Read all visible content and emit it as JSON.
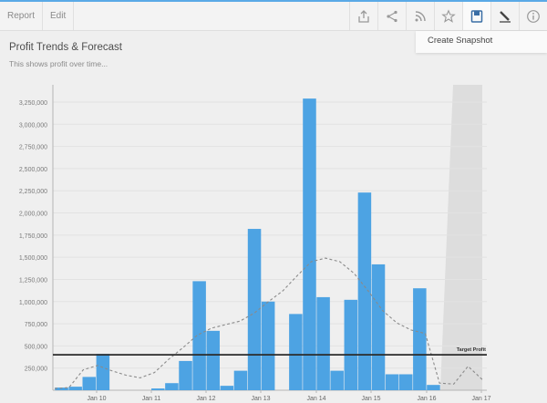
{
  "toolbar": {
    "tabs": [
      {
        "label": "Report"
      },
      {
        "label": "Edit"
      }
    ],
    "icons": [
      "export-icon",
      "share-icon",
      "rss-icon",
      "star-icon",
      "snapshot-icon",
      "pen-icon",
      "info-icon"
    ]
  },
  "snapshot_menu": {
    "create_label": "Create Snapshot"
  },
  "report": {
    "title": "Profit Trends & Forecast",
    "subtitle": "This shows profit over time..."
  },
  "chart_data": {
    "type": "bar",
    "title": "Profit Trends & Forecast",
    "subtitle": "This shows profit over time...",
    "xlabel": "",
    "ylabel": "",
    "ylim": [
      0,
      3400000
    ],
    "y_ticks": [
      {
        "value": 250000,
        "label": "250,000"
      },
      {
        "value": 500000,
        "label": "500,000"
      },
      {
        "value": 750000,
        "label": "750,000"
      },
      {
        "value": 1000000,
        "label": "1,000,000"
      },
      {
        "value": 1250000,
        "label": "1,250,000"
      },
      {
        "value": 1500000,
        "label": "1,500,000"
      },
      {
        "value": 1750000,
        "label": "1,750,000"
      },
      {
        "value": 2000000,
        "label": "2,000,000"
      },
      {
        "value": 2250000,
        "label": "2,250,000"
      },
      {
        "value": 2500000,
        "label": "2,500,000"
      },
      {
        "value": 2750000,
        "label": "2,750,000"
      },
      {
        "value": 3000000,
        "label": "3,000,000"
      },
      {
        "value": 3250000,
        "label": "3,250,000"
      }
    ],
    "x_ticks": [
      "Jan 10",
      "Jan 11",
      "Jan 12",
      "Jan 13",
      "Jan 14",
      "Jan 15",
      "Jan 16",
      "Jan 17"
    ],
    "bar_values": [
      30000,
      40000,
      150000,
      410000,
      0,
      0,
      0,
      20000,
      80000,
      330000,
      1230000,
      670000,
      50000,
      220000,
      1820000,
      1000000,
      0,
      860000,
      3290000,
      1050000,
      220000,
      1020000,
      2230000,
      1420000,
      180000,
      180000,
      1150000,
      60000
    ],
    "trend_line": {
      "style": "dashed",
      "values": [
        20000,
        30000,
        230000,
        280000,
        220000,
        170000,
        140000,
        200000,
        350000,
        480000,
        620000,
        700000,
        740000,
        780000,
        870000,
        1000000,
        1120000,
        1290000,
        1450000,
        1490000,
        1450000,
        1320000,
        1120000,
        900000,
        760000,
        680000,
        640000,
        80000,
        70000,
        270000,
        120000
      ]
    },
    "target_line": {
      "value": 400000,
      "label": "Target Profit"
    },
    "forecast_region": true,
    "grid": true,
    "colors": {
      "bars": "#4da3e3",
      "trend": "#8a8a8a",
      "target": "#2b2b2b",
      "forecast": "#d7d7d7"
    }
  }
}
